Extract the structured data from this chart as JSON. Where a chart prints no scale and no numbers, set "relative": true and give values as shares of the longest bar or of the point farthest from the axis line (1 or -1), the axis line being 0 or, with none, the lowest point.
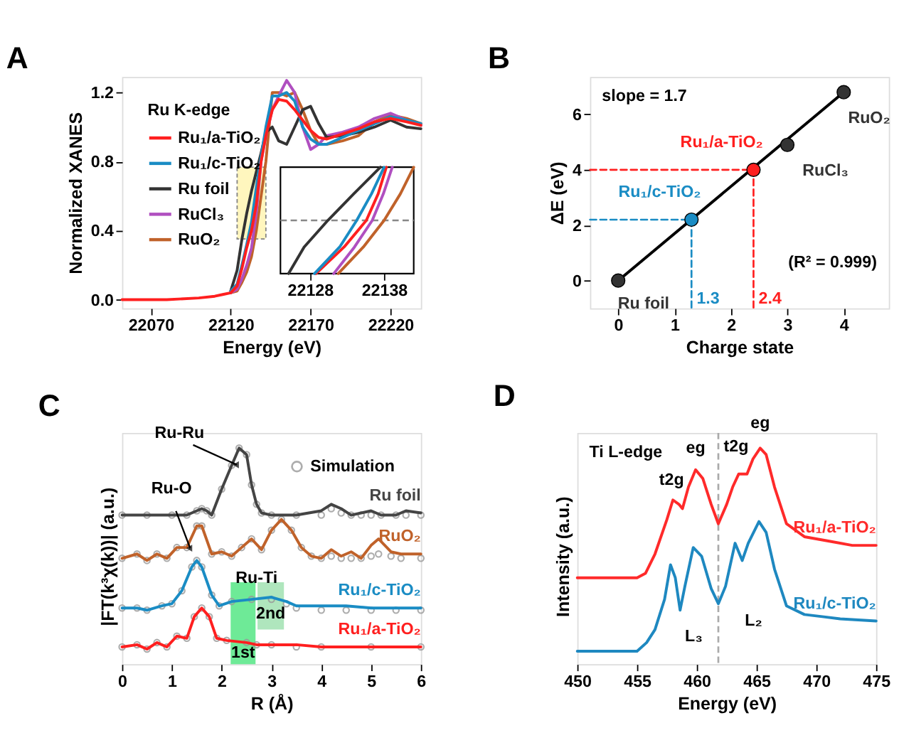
{
  "chart_data": [
    {
      "type": "line",
      "title": "A",
      "xlabel": "Energy (eV)",
      "ylabel": "Normalized XANES",
      "legend_title": "Ru K-edge",
      "legend": "top left",
      "x": [
        22052,
        22080,
        22100,
        22110,
        22115,
        22120,
        22124,
        22127,
        22130,
        22133,
        22136,
        22139,
        22142,
        22146,
        22150,
        22155,
        22160,
        22165,
        22170,
        22175,
        22180,
        22190,
        22200,
        22210,
        22220,
        22230,
        22239
      ],
      "xlim": [
        22052,
        22239
      ],
      "ylim": [
        -0.05,
        1.29
      ],
      "xticks": [
        22070,
        22120,
        22170,
        22220
      ],
      "yticks": [
        {
          "value": 0,
          "label": "0.0"
        },
        0.4,
        0.8,
        1.2
      ],
      "bands": [
        {
          "axis": "x",
          "from": 22124,
          "to": 22142,
          "color": "#fff6b8"
        }
      ],
      "series": [
        {
          "name": "Ru₁/a-TiO₂",
          "color": "#ff1f1f",
          "values": [
            0,
            0,
            0.01,
            0.02,
            0.03,
            0.04,
            0.08,
            0.18,
            0.3,
            0.4,
            0.55,
            0.8,
            0.95,
            1.1,
            1.16,
            1.15,
            1.1,
            1.04,
            0.98,
            0.94,
            0.93,
            0.96,
            0.99,
            1.03,
            1.05,
            1.03,
            1.01
          ]
        },
        {
          "name": "Ru₁/c-TiO₂",
          "color": "#1a8cc4",
          "values": [
            null,
            null,
            null,
            null,
            null,
            0.05,
            0.09,
            0.2,
            0.32,
            0.45,
            0.65,
            0.83,
            1.0,
            1.18,
            1.18,
            1.2,
            1.15,
            1.0,
            0.93,
            0.9,
            0.9,
            0.94,
            0.98,
            1.02,
            1.06,
            1.04,
            1.02
          ]
        },
        {
          "name": "Ru foil",
          "color": "#333333",
          "values": [
            null,
            null,
            null,
            null,
            null,
            0.05,
            0.17,
            0.35,
            0.5,
            0.63,
            0.74,
            0.85,
            0.97,
            1.0,
            0.92,
            0.9,
            1.0,
            1.1,
            1.12,
            1.02,
            0.94,
            0.95,
            0.97,
            1.0,
            1.04,
            1.0,
            0.99
          ]
        },
        {
          "name": "RuCl₃",
          "color": "#b04fc0",
          "values": [
            null,
            null,
            null,
            null,
            null,
            0.04,
            0.06,
            0.12,
            0.2,
            0.3,
            0.5,
            0.8,
            0.95,
            1.1,
            1.18,
            1.27,
            1.2,
            1.0,
            0.87,
            0.9,
            0.95,
            0.97,
            1.0,
            1.05,
            1.08,
            1.04,
            1.01
          ]
        },
        {
          "name": "RuO₂",
          "color": "#c0622a",
          "values": [
            null,
            null,
            null,
            null,
            null,
            0.04,
            0.05,
            0.1,
            0.16,
            0.25,
            0.4,
            0.6,
            0.8,
            1.2,
            1.2,
            1.18,
            1.2,
            1.1,
            0.98,
            0.9,
            0.9,
            0.92,
            0.95,
            1.03,
            1.07,
            1.05,
            1.02
          ]
        }
      ]
    },
    {
      "type": "line",
      "relative": true,
      "xlim": [
        22124,
        22142
      ],
      "xticks": [
        22128,
        22138
      ],
      "tick_labels": "x",
      "ref_lines": [
        {
          "axis": "y",
          "value": 0.5,
          "color": "#888888",
          "line_style": "dashed"
        }
      ],
      "series": [
        {
          "color": "#333333",
          "x": [
            22125.1,
            22127.2,
            22130.4,
            22133.9,
            22137.5
          ],
          "values": [
            0,
            0.25,
            0.5,
            0.75,
            1
          ]
        },
        {
          "color": "#1a8cc4",
          "x": [
            22128.6,
            22132.0,
            22134.3,
            22136.3,
            22138.0
          ],
          "values": [
            0,
            0.25,
            0.5,
            0.75,
            1
          ]
        },
        {
          "color": "#ff1f1f",
          "x": [
            22128.8,
            22132.6,
            22135.6,
            22137.2,
            22138.3
          ],
          "values": [
            0,
            0.25,
            0.5,
            0.75,
            1
          ]
        },
        {
          "color": "#b04fc0",
          "x": [
            22131.2,
            22134.0,
            22136.4,
            22137.9,
            22139.1
          ],
          "values": [
            0,
            0.25,
            0.5,
            0.75,
            1
          ]
        },
        {
          "color": "#c0622a",
          "x": [
            22131.8,
            22135.2,
            22138.0,
            22140.2,
            22142.0
          ],
          "values": [
            0,
            0.25,
            0.5,
            0.75,
            1
          ]
        }
      ]
    },
    {
      "type": "scatter",
      "title": "B",
      "xlabel": "Charge state",
      "ylabel": "ΔE (eV)",
      "xlim": [
        -0.5,
        4.8
      ],
      "ylim": [
        -1,
        7.35
      ],
      "xticks": [
        0,
        1,
        2,
        3,
        4
      ],
      "yticks": [
        0,
        2,
        4,
        6
      ],
      "annotations": [
        "slope = 1.7",
        "(R² = 0.999)",
        {
          "text": "1.3",
          "x": 1.3,
          "y": -1
        },
        {
          "text": "2.4",
          "x": 2.4,
          "y": -1
        }
      ],
      "series": [
        {
          "type": "line",
          "color": "#000000",
          "x": [
            0,
            4
          ],
          "values": [
            0,
            6.8
          ]
        },
        {
          "type": "line",
          "line_style": "dashed",
          "color": "#1a8cc4",
          "x": [
            -0.5,
            1.3,
            1.3
          ],
          "values": [
            2.2,
            2.2,
            -1
          ]
        },
        {
          "type": "line",
          "line_style": "dashed",
          "color": "#ff1f1f",
          "x": [
            -0.5,
            2.4,
            2.4
          ],
          "values": [
            4.0,
            4.0,
            -1
          ]
        },
        {
          "name": "Ru foil",
          "marker": "circle",
          "color": "#333333",
          "x": [
            0
          ],
          "values": [
            0
          ]
        },
        {
          "name": "Ru₁/c-TiO₂",
          "marker": "circle",
          "color": "#1a8cc4",
          "x": [
            1.3
          ],
          "values": [
            2.2
          ]
        },
        {
          "name": "Ru₁/a-TiO₂",
          "marker": "circle",
          "color": "#ff1f1f",
          "x": [
            2.4
          ],
          "values": [
            4.0
          ]
        },
        {
          "name": "RuCl₃",
          "marker": "circle",
          "color": "#333333",
          "x": [
            3
          ],
          "values": [
            4.9
          ]
        },
        {
          "name": "RuO₂",
          "marker": "circle",
          "color": "#333333",
          "x": [
            4
          ],
          "values": [
            6.8
          ]
        }
      ]
    },
    {
      "type": "line",
      "title": "C",
      "xlabel": "R (Å)",
      "ylabel": "|FT(k³χ(k))| (a.u.)",
      "relative": true,
      "legend": "top right",
      "xlim": [
        0,
        6
      ],
      "xticks": [
        0,
        1,
        2,
        3,
        4,
        5,
        6
      ],
      "bands": [
        {
          "axis": "x",
          "from": 2.18,
          "to": 2.68,
          "label": "1st",
          "color": "#5ee88c"
        },
        {
          "axis": "x",
          "from": 2.72,
          "to": 3.25,
          "label": "2nd",
          "color": "#a6e3b6"
        }
      ],
      "annotations": [
        {
          "text": "Ru-Ru",
          "x": 2.25,
          "y": 0.93
        },
        {
          "text": "Ru-O",
          "x": 1.35,
          "y": 0.55
        },
        {
          "text": "Ru-Ti",
          "x": 2.7,
          "y": 0.4
        }
      ],
      "series": [
        {
          "type": "scatter",
          "name": "Simulation",
          "marker": "circle",
          "color": "#999999",
          "x": [
            0,
            0.5,
            1.0,
            1.3,
            1.5,
            1.6,
            1.7,
            1.8,
            2.0,
            2.2,
            2.35,
            2.5,
            2.6,
            2.7,
            2.8,
            3.0,
            3.5,
            4.0,
            4.2,
            4.4,
            4.6,
            4.8,
            5.0,
            5.2,
            5.5,
            5.7,
            6.0,
            0,
            0.3,
            0.5,
            0.7,
            0.9,
            1.1,
            1.3,
            1.5,
            1.6,
            1.8,
            2.0,
            2.2,
            2.4,
            2.6,
            2.8,
            3.0,
            3.2,
            3.4,
            3.6,
            3.8,
            4.0,
            4.2,
            4.4,
            4.6,
            4.8,
            5.0,
            5.15,
            5.4,
            5.6,
            6.0,
            0,
            0.3,
            0.5,
            0.8,
            1.0,
            1.2,
            1.4,
            1.5,
            1.6,
            1.8,
            1.95,
            2.2,
            2.6,
            3.0,
            3.3,
            3.5,
            4.0,
            4.5,
            5.0,
            5.5,
            6.0,
            0,
            0.3,
            0.5,
            0.7,
            0.9,
            1.1,
            1.3,
            1.45,
            1.6,
            1.75,
            1.9,
            2.1,
            2.5,
            2.7,
            3.0,
            3.5,
            4.0,
            5.0,
            6.0
          ],
          "values": [
            0.69,
            0.69,
            0.69,
            0.69,
            0.71,
            0.72,
            0.71,
            0.69,
            0.81,
            0.92,
            1.0,
            0.97,
            0.83,
            0.74,
            0.7,
            0.69,
            0.69,
            0.69,
            0.72,
            0.7,
            0.69,
            0.69,
            0.69,
            0.69,
            0.69,
            0.69,
            0.69,
            0.49,
            0.51,
            0.48,
            0.51,
            0.49,
            0.54,
            0.54,
            0.64,
            0.64,
            0.51,
            0.52,
            0.5,
            0.54,
            0.58,
            0.53,
            0.62,
            0.67,
            0.62,
            0.54,
            0.5,
            0.49,
            0.5,
            0.49,
            0.49,
            0.49,
            0.5,
            0.51,
            0.5,
            0.49,
            0.49,
            0.26,
            0.26,
            0.25,
            0.27,
            0.28,
            0.34,
            0.45,
            0.48,
            0.45,
            0.32,
            0.27,
            0.29,
            0.3,
            0.3,
            0.28,
            0.26,
            0.25,
            0.25,
            0.25,
            0.25,
            0.25,
            0.08,
            0.09,
            0.07,
            0.1,
            0.08,
            0.13,
            0.12,
            0.22,
            0.26,
            0.22,
            0.12,
            0.11,
            0.1,
            0.09,
            0.09,
            0.08,
            0.08,
            0.08,
            0.08
          ]
        },
        {
          "name": "Ru foil",
          "color": "#444444",
          "x": [
            0,
            0.5,
            1.0,
            1.3,
            1.5,
            1.6,
            1.7,
            1.8,
            2.0,
            2.2,
            2.35,
            2.5,
            2.6,
            2.7,
            2.8,
            3.0,
            3.5,
            4.0,
            4.2,
            4.4,
            4.6,
            4.8,
            5.0,
            5.2,
            5.5,
            5.7,
            6.0
          ],
          "values": [
            0.69,
            0.69,
            0.69,
            0.69,
            0.71,
            0.72,
            0.71,
            0.69,
            0.81,
            0.92,
            1.0,
            0.97,
            0.83,
            0.74,
            0.7,
            0.69,
            0.69,
            0.71,
            0.74,
            0.72,
            0.69,
            0.7,
            0.71,
            0.69,
            0.69,
            0.71,
            0.7
          ]
        },
        {
          "name": "RuO₂",
          "color": "#c0622a",
          "x": [
            0,
            0.3,
            0.5,
            0.7,
            0.9,
            1.1,
            1.3,
            1.5,
            1.6,
            1.8,
            2.0,
            2.2,
            2.4,
            2.6,
            2.8,
            3.0,
            3.2,
            3.4,
            3.6,
            3.8,
            4.0,
            4.2,
            4.4,
            4.6,
            4.8,
            5.0,
            5.15,
            5.4,
            5.6,
            6.0
          ],
          "values": [
            0.49,
            0.51,
            0.48,
            0.51,
            0.49,
            0.54,
            0.54,
            0.64,
            0.64,
            0.51,
            0.52,
            0.5,
            0.54,
            0.58,
            0.53,
            0.62,
            0.67,
            0.62,
            0.54,
            0.5,
            0.49,
            0.53,
            0.5,
            0.52,
            0.49,
            0.55,
            0.58,
            0.52,
            0.51,
            0.51
          ]
        },
        {
          "name": "Ru₁/c-TiO₂",
          "color": "#1a8cc4",
          "x": [
            0,
            0.3,
            0.5,
            0.8,
            1.0,
            1.2,
            1.4,
            1.5,
            1.6,
            1.8,
            1.95,
            2.2,
            2.6,
            3.0,
            3.3,
            3.5,
            4.0,
            4.5,
            5.0,
            5.5,
            6.0
          ],
          "values": [
            0.26,
            0.26,
            0.25,
            0.27,
            0.28,
            0.34,
            0.45,
            0.48,
            0.45,
            0.32,
            0.27,
            0.29,
            0.3,
            0.31,
            0.29,
            0.27,
            0.27,
            0.27,
            0.26,
            0.26,
            0.26
          ]
        },
        {
          "name": "Ru₁/a-TiO₂",
          "color": "#ff1f1f",
          "x": [
            0,
            0.3,
            0.5,
            0.7,
            0.9,
            1.1,
            1.3,
            1.45,
            1.6,
            1.75,
            1.9,
            2.1,
            2.5,
            2.7,
            3.0,
            3.5,
            4.0,
            5.0,
            6.0
          ],
          "values": [
            0.08,
            0.09,
            0.07,
            0.1,
            0.08,
            0.13,
            0.12,
            0.22,
            0.26,
            0.22,
            0.12,
            0.11,
            0.1,
            0.09,
            0.09,
            0.09,
            0.08,
            0.08,
            0.08
          ]
        }
      ]
    },
    {
      "type": "line",
      "title": "D",
      "xlabel": "Energy (eV)",
      "ylabel": "Intensity (a.u.)",
      "relative": true,
      "xlim": [
        450,
        475
      ],
      "xticks": [
        450,
        455,
        460,
        465,
        470,
        475
      ],
      "ref_lines": [
        {
          "axis": "x",
          "value": 461.8,
          "color": "#aaaaaa",
          "line_style": "dashed"
        }
      ],
      "annotations": [
        "Ti L-edge",
        {
          "text": "t2g",
          "x": 458.1,
          "y": 0.76
        },
        {
          "text": "eg",
          "x": 459.9,
          "y": 0.9
        },
        {
          "text": "t2g",
          "x": 463.5,
          "y": 0.88
        },
        {
          "text": "eg",
          "x": 465.3,
          "y": 1.0
        },
        "L₃",
        "L₂"
      ],
      "series": [
        {
          "name": "Ru₁/a-TiO₂",
          "color": "#ff2a2a",
          "x": [
            450,
            455,
            455.7,
            456.5,
            457.5,
            458,
            458.5,
            458.8,
            459.3,
            459.9,
            460.5,
            461.2,
            461.8,
            462.5,
            463,
            463.5,
            464.2,
            464.7,
            465.3,
            465.8,
            466.5,
            467.5,
            469,
            471,
            473,
            475
          ],
          "values": [
            0.4,
            0.4,
            0.42,
            0.51,
            0.67,
            0.76,
            0.74,
            0.72,
            0.82,
            0.9,
            0.86,
            0.74,
            0.65,
            0.74,
            0.82,
            0.88,
            0.88,
            0.95,
            1.0,
            0.97,
            0.82,
            0.65,
            0.59,
            0.57,
            0.55,
            0.55
          ]
        },
        {
          "name": "Ru₁/c-TiO₂",
          "color": "#1e88c0",
          "x": [
            450,
            455,
            455.8,
            456.5,
            457.3,
            457.8,
            458.2,
            458.6,
            459.0,
            459.7,
            460.4,
            461.2,
            461.8,
            462.4,
            463.2,
            463.8,
            464.3,
            465.2,
            465.8,
            466.5,
            467.5,
            469,
            470.5,
            472,
            475
          ],
          "values": [
            0.06,
            0.06,
            0.1,
            0.16,
            0.3,
            0.46,
            0.4,
            0.25,
            0.36,
            0.54,
            0.5,
            0.35,
            0.28,
            0.36,
            0.56,
            0.48,
            0.56,
            0.66,
            0.61,
            0.44,
            0.27,
            0.23,
            0.22,
            0.21,
            0.2
          ]
        }
      ]
    }
  ]
}
